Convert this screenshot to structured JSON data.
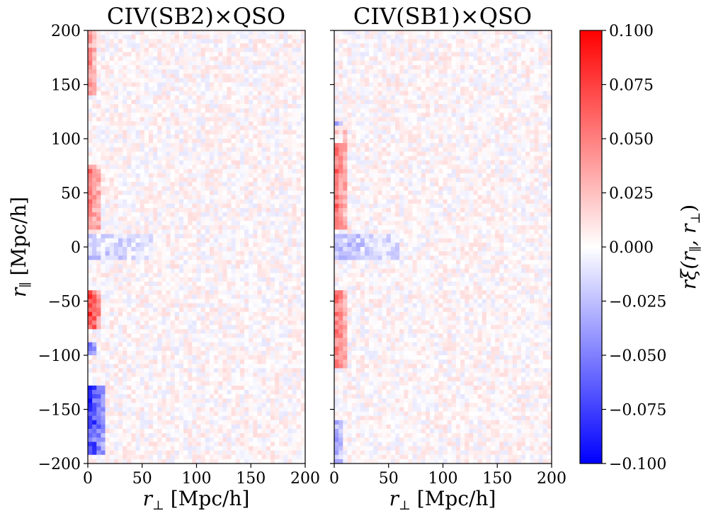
{
  "chart_data": [
    {
      "type": "heatmap",
      "title": "CIV(SB2)×QSO",
      "xlabel_symbol": "r",
      "xlabel_sub": "⊥",
      "xlabel_unit": " [Mpc/h]",
      "ylabel_symbol": "r",
      "ylabel_sub": "∥",
      "ylabel_unit": " [Mpc/h]",
      "xlim": [
        0,
        200
      ],
      "ylim": [
        -200,
        200
      ],
      "xticks": [
        0,
        50,
        100,
        150,
        200
      ],
      "yticks": [
        -200,
        -150,
        -100,
        -50,
        0,
        50,
        100,
        150,
        200
      ],
      "ytick_labels": [
        "−200",
        "−150",
        "−100",
        "−50",
        "0",
        "50",
        "100",
        "150",
        "200"
      ],
      "grid": {
        "nx": 50,
        "ny": 100,
        "bin_size": 4
      },
      "features": [
        {
          "desc": "positive excess near r_perp~0",
          "x_range": [
            0,
            12
          ],
          "y_range": [
            15,
            75
          ],
          "value": 0.05
        },
        {
          "desc": "negative dip at r_par~0",
          "x_range": [
            0,
            60
          ],
          "y_range": [
            -10,
            10
          ],
          "value": -0.02
        },
        {
          "desc": "strong positive peak",
          "x_range": [
            0,
            12
          ],
          "y_range": [
            -75,
            -40
          ],
          "value": 0.075
        },
        {
          "desc": "strong negative region",
          "x_range": [
            0,
            16
          ],
          "y_range": [
            -190,
            -130
          ],
          "value": -0.08
        },
        {
          "desc": "negative patch",
          "x_range": [
            0,
            8
          ],
          "y_range": [
            -100,
            -90
          ],
          "value": -0.065
        },
        {
          "desc": "positive band",
          "x_range": [
            0,
            8
          ],
          "y_range": [
            140,
            200
          ],
          "value": 0.04
        }
      ],
      "noise_amplitude": 0.012
    },
    {
      "type": "heatmap",
      "title": "CIV(SB1)×QSO",
      "xlabel_symbol": "r",
      "xlabel_sub": "⊥",
      "xlabel_unit": " [Mpc/h]",
      "xlim": [
        0,
        200
      ],
      "ylim": [
        -200,
        200
      ],
      "xticks": [
        0,
        50,
        100,
        150,
        200
      ],
      "yticks": [
        -200,
        -150,
        -100,
        -50,
        0,
        50,
        100,
        150,
        200
      ],
      "grid": {
        "nx": 50,
        "ny": 100,
        "bin_size": 4
      },
      "features": [
        {
          "desc": "positive excess near r_perp~0",
          "x_range": [
            0,
            12
          ],
          "y_range": [
            15,
            110
          ],
          "value": 0.055
        },
        {
          "desc": "negative dip at r_par~0",
          "x_range": [
            0,
            60
          ],
          "y_range": [
            -10,
            10
          ],
          "value": -0.025
        },
        {
          "desc": "positive peak",
          "x_range": [
            0,
            12
          ],
          "y_range": [
            -110,
            -40
          ],
          "value": 0.055
        },
        {
          "desc": "negative patch",
          "x_range": [
            0,
            8
          ],
          "y_range": [
            95,
            115
          ],
          "value": -0.05
        },
        {
          "desc": "mixed region",
          "x_range": [
            0,
            8
          ],
          "y_range": [
            -200,
            -160
          ],
          "value": -0.04
        }
      ],
      "noise_amplitude": 0.012
    }
  ],
  "colorbar": {
    "cmap": "bwr",
    "vmin": -0.1,
    "vmax": 0.1,
    "ticks": [
      -0.1,
      -0.075,
      -0.05,
      -0.025,
      0.0,
      0.025,
      0.05,
      0.075,
      0.1
    ],
    "tick_labels": [
      "−0.100",
      "−0.075",
      "−0.050",
      "−0.025",
      "0.000",
      "0.025",
      "0.050",
      "0.075",
      "0.100"
    ],
    "label": "rξ(r∥, r⊥)",
    "label_main": "rξ(r",
    "label_sub1": "∥",
    "label_mid": ", r",
    "label_sub2": "⊥",
    "label_end": ")",
    "colors": {
      "low": "#0000ff",
      "mid": "#ffffff",
      "high": "#ff0000"
    }
  }
}
